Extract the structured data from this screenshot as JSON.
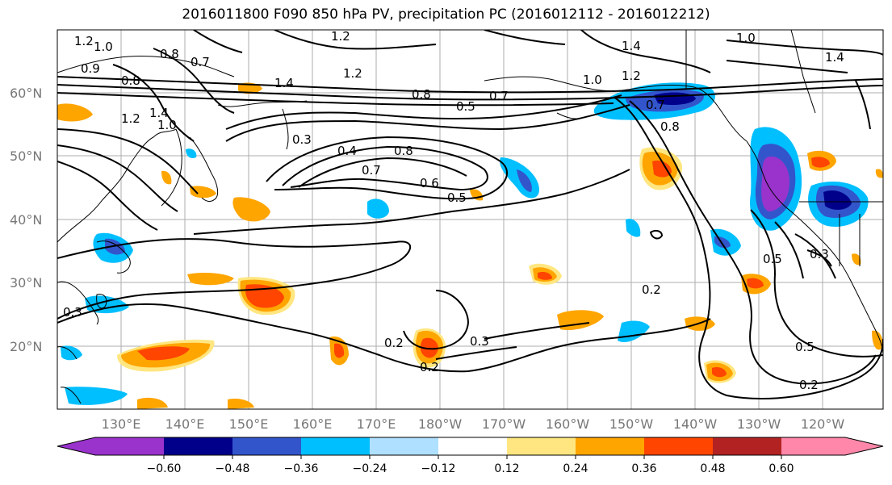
{
  "title": "2016011800 F090 850 hPa PV, precipitation PC (2016012112 - 2016012212)",
  "lat_labels": [
    "60°N",
    "50°N",
    "40°N",
    "30°N",
    "20°N"
  ],
  "lon_labels": [
    "130°E",
    "140°E",
    "150°E",
    "160°E",
    "170°E",
    "180°W",
    "170°W",
    "160°W",
    "150°W",
    "140°W",
    "130°W",
    "120°W"
  ],
  "colorbar": {
    "ticks": [
      "−0.60",
      "−0.48",
      "−0.36",
      "−0.24",
      "−0.12",
      "0.12",
      "0.24",
      "0.36",
      "0.48",
      "0.60"
    ],
    "colors": [
      "#9933cc",
      "#00008b",
      "#3355cc",
      "#00bfff",
      "#b0e0ff",
      "#ffffff",
      "#ffe680",
      "#ffa500",
      "#ff4500",
      "#b22222",
      "#ff88aa"
    ]
  },
  "contour_labels": [
    "1.2",
    "1.0",
    "0.8",
    "0.9",
    "0.7",
    "1.2",
    "0.8",
    "1.0",
    "1.2",
    "1.4",
    "0.3",
    "1.4",
    "1.2",
    "0.4",
    "0.8",
    "0.7",
    "0.6",
    "0.5",
    "0.8",
    "0.5",
    "0.7",
    "1.0",
    "1.2",
    "0.7",
    "0.8",
    "1.0",
    "1.4",
    "1.4",
    "0.5",
    "0.3",
    "0.2",
    "0.2",
    "0.3",
    "0.2",
    "0.5",
    "0.2",
    "0.3"
  ]
}
